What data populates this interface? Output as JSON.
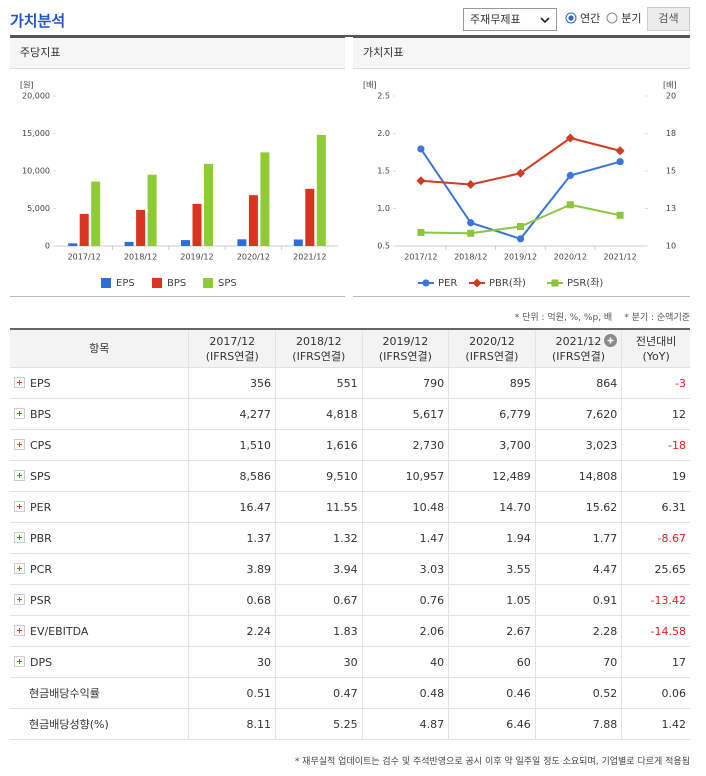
{
  "header": {
    "title": "가치분석",
    "select": "주재무제표",
    "radios": [
      {
        "label": "연간",
        "checked": true
      },
      {
        "label": "분기",
        "checked": false
      }
    ],
    "button": "검색"
  },
  "chart_data": [
    {
      "type": "bar",
      "title": "주당지표",
      "ylabel": "[원]",
      "categories": [
        "2017/12",
        "2018/12",
        "2019/12",
        "2020/12",
        "2021/12"
      ],
      "series": [
        {
          "name": "EPS",
          "color": "#2d6fd9",
          "values": [
            356,
            551,
            790,
            895,
            864
          ]
        },
        {
          "name": "BPS",
          "color": "#d9341f",
          "values": [
            4277,
            4818,
            5617,
            6779,
            7620
          ]
        },
        {
          "name": "SPS",
          "color": "#8ecb34",
          "values": [
            8586,
            9510,
            10957,
            12489,
            14808
          ]
        }
      ],
      "ylim": [
        0,
        20000
      ],
      "yticks": [
        0,
        {
          "value": 5000,
          "label": "5,000"
        },
        {
          "value": 10000,
          "label": "10,000"
        },
        {
          "value": 15000,
          "label": "15,000"
        },
        {
          "value": 20000,
          "label": "20,000"
        }
      ],
      "grid": false,
      "legend": "bottom"
    },
    {
      "type": "line",
      "title": "가치지표",
      "ylabel": "[배]",
      "y2label": "[배]",
      "categories": [
        "2017/12",
        "2018/12",
        "2019/12",
        "2020/12",
        "2021/12"
      ],
      "series": [
        {
          "name": "PER",
          "color": "#3a76d9",
          "marker": "circle",
          "axis": "y2",
          "values": [
            16.47,
            11.55,
            10.48,
            14.7,
            15.62
          ]
        },
        {
          "name": "PBR(좌)",
          "color": "#d33b20",
          "marker": "diamond",
          "values": [
            1.37,
            1.32,
            1.47,
            1.94,
            1.77
          ]
        },
        {
          "name": "PSR(좌)",
          "color": "#8cc63f",
          "marker": "square",
          "values": [
            0.68,
            0.67,
            0.76,
            1.05,
            0.91
          ]
        }
      ],
      "ylim": [
        0.5,
        2.5
      ],
      "yticks": [
        0.5,
        {
          "value": 1,
          "label": "1.0"
        },
        1.5,
        {
          "value": 2,
          "label": "2.0"
        },
        2.5
      ],
      "y2lim": [
        10,
        20
      ],
      "y2ticks": [
        10,
        {
          "value": 12.5,
          "label": "13"
        },
        15,
        {
          "value": 17.5,
          "label": "18"
        },
        20
      ],
      "grid": false,
      "legend": "bottom"
    }
  ],
  "notes": [
    "* 단위 : 억원, %, %p, 배",
    "* 분기 : 순액기준"
  ],
  "table": {
    "item_header": "항목",
    "columns": [
      {
        "line1": "2017/12",
        "line2": "(IFRS연결)"
      },
      {
        "line1": "2018/12",
        "line2": "(IFRS연결)"
      },
      {
        "line1": "2019/12",
        "line2": "(IFRS연결)"
      },
      {
        "line1": "2020/12",
        "line2": "(IFRS연결)"
      },
      {
        "line1": "2021/12",
        "line2": "(IFRS연결)"
      },
      {
        "line1": "전년대비",
        "line2": "(YoY)"
      }
    ],
    "rows": [
      {
        "label": "EPS",
        "expandable": true,
        "values": [
          "356",
          "551",
          "790",
          "895",
          "864",
          "-3"
        ]
      },
      {
        "label": "BPS",
        "expandable": true,
        "values": [
          "4,277",
          "4,818",
          "5,617",
          "6,779",
          "7,620",
          "12"
        ]
      },
      {
        "label": "CPS",
        "expandable": true,
        "values": [
          "1,510",
          "1,616",
          "2,730",
          "3,700",
          "3,023",
          "-18"
        ]
      },
      {
        "label": "SPS",
        "expandable": true,
        "values": [
          "8,586",
          "9,510",
          "10,957",
          "12,489",
          "14,808",
          "19"
        ]
      },
      {
        "label": "PER",
        "expandable": true,
        "values": [
          "16.47",
          "11.55",
          "10.48",
          "14.70",
          "15.62",
          "6.31"
        ]
      },
      {
        "label": "PBR",
        "expandable": true,
        "values": [
          "1.37",
          "1.32",
          "1.47",
          "1.94",
          "1.77",
          "-8.67"
        ]
      },
      {
        "label": "PCR",
        "expandable": true,
        "values": [
          "3.89",
          "3.94",
          "3.03",
          "3.55",
          "4.47",
          "25.65"
        ]
      },
      {
        "label": "PSR",
        "expandable": true,
        "values": [
          "0.68",
          "0.67",
          "0.76",
          "1.05",
          "0.91",
          "-13.42"
        ]
      },
      {
        "label": "EV/EBITDA",
        "expandable": true,
        "values": [
          "2.24",
          "1.83",
          "2.06",
          "2.67",
          "2.28",
          "-14.58"
        ]
      },
      {
        "label": "DPS",
        "expandable": true,
        "values": [
          "30",
          "30",
          "40",
          "60",
          "70",
          "17"
        ]
      },
      {
        "label": "현금배당수익률",
        "expandable": false,
        "values": [
          "0.51",
          "0.47",
          "0.48",
          "0.46",
          "0.52",
          "0.06"
        ]
      },
      {
        "label": "현금배당성향(%)",
        "expandable": false,
        "values": [
          "8.11",
          "5.25",
          "4.87",
          "6.46",
          "7.88",
          "1.42"
        ]
      }
    ]
  },
  "footnote": "* 재무실적 업데이트는 검수 및 주석반영으로 공시 이후 약 일주일 정도 소요되며, 기업별로 다르게 적용됨"
}
